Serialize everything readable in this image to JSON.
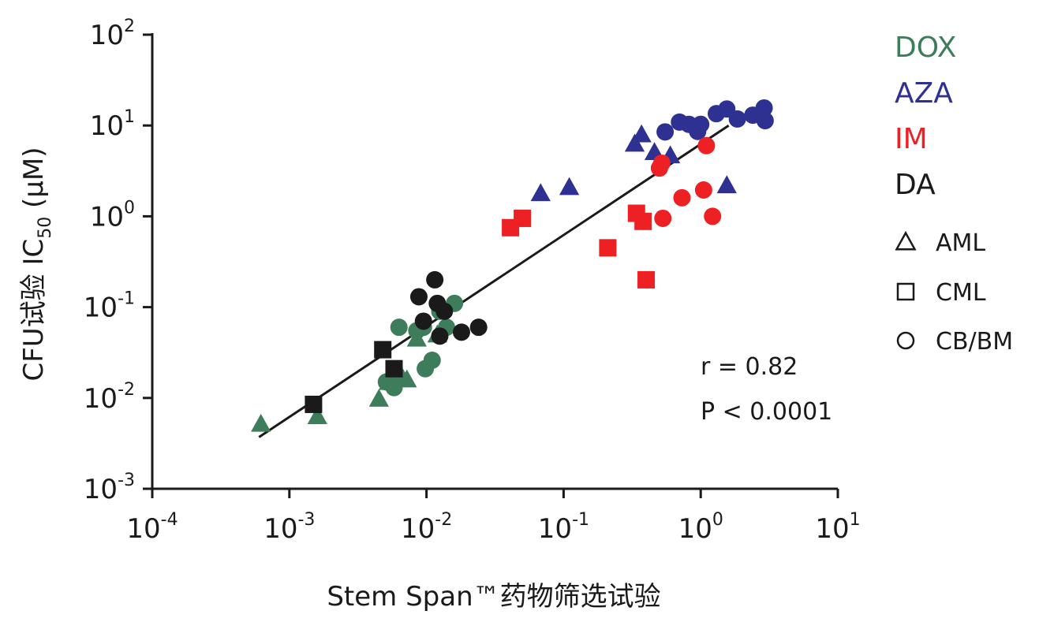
{
  "chart_data": {
    "type": "scatter",
    "xlabel": "Stem Span™药物筛选试验",
    "ylabel_parts": {
      "main": "CFU试验 IC",
      "sub": "50",
      "unit": " (μM)"
    },
    "x_scale": "log",
    "y_scale": "log",
    "xlim": [
      0.0001,
      10
    ],
    "ylim": [
      0.001,
      100
    ],
    "x_ticks": [
      {
        "base": "10",
        "exp": "-4"
      },
      {
        "base": "10",
        "exp": "-3"
      },
      {
        "base": "10",
        "exp": "-2"
      },
      {
        "base": "10",
        "exp": "-1"
      },
      {
        "base": "10",
        "exp": "0"
      },
      {
        "base": "10",
        "exp": "1"
      }
    ],
    "y_ticks": [
      {
        "base": "10",
        "exp": "-3"
      },
      {
        "base": "10",
        "exp": "-2"
      },
      {
        "base": "10",
        "exp": "-1"
      },
      {
        "base": "10",
        "exp": "0"
      },
      {
        "base": "10",
        "exp": "1"
      },
      {
        "base": "10",
        "exp": "2"
      }
    ],
    "legend_drugs": [
      {
        "label": "DOX",
        "color": "#3e7d5c"
      },
      {
        "label": "AZA",
        "color": "#2e3192"
      },
      {
        "label": "IM",
        "color": "#ed2024"
      },
      {
        "label": "DA",
        "color": "#1a1a1a"
      }
    ],
    "legend_types": [
      {
        "label": "AML",
        "shape": "triangle"
      },
      {
        "label": "CML",
        "shape": "square"
      },
      {
        "label": "CB/BM",
        "shape": "circle"
      }
    ],
    "stats": {
      "r": "r = 0.82",
      "p": "P < 0.0001"
    },
    "fit_line": {
      "x": [
        0.0006,
        1.6
      ],
      "y": [
        0.0037,
        10
      ]
    },
    "series": [
      {
        "drug": "DOX",
        "shape": "triangle",
        "points": [
          [
            0.00062,
            0.0052
          ],
          [
            0.0016,
            0.0063
          ],
          [
            0.0045,
            0.0098
          ],
          [
            0.0053,
            0.015
          ],
          [
            0.0065,
            0.018
          ],
          [
            0.0072,
            0.016
          ],
          [
            0.0085,
            0.045
          ],
          [
            0.012,
            0.05
          ]
        ]
      },
      {
        "drug": "DOX",
        "shape": "circle",
        "points": [
          [
            0.0051,
            0.015
          ],
          [
            0.0058,
            0.013
          ],
          [
            0.0063,
            0.06
          ],
          [
            0.0085,
            0.055
          ],
          [
            0.0098,
            0.021
          ],
          [
            0.011,
            0.026
          ],
          [
            0.0125,
            0.09
          ],
          [
            0.014,
            0.06
          ],
          [
            0.016,
            0.11
          ],
          [
            0.0095,
            0.06
          ]
        ]
      },
      {
        "drug": "AZA",
        "shape": "triangle",
        "points": [
          [
            0.068,
            1.8
          ],
          [
            0.11,
            2.1
          ],
          [
            0.33,
            6.3
          ],
          [
            0.37,
            8
          ],
          [
            0.46,
            5.1
          ],
          [
            0.6,
            4.7
          ],
          [
            1.55,
            2.2
          ]
        ]
      },
      {
        "drug": "AZA",
        "shape": "circle",
        "points": [
          [
            0.55,
            8.5
          ],
          [
            0.7,
            10.9
          ],
          [
            0.82,
            10.3
          ],
          [
            0.95,
            8.6
          ],
          [
            1.0,
            10.3
          ],
          [
            1.3,
            13.5
          ],
          [
            1.55,
            15.2
          ],
          [
            1.85,
            11.8
          ],
          [
            2.4,
            13
          ],
          [
            2.9,
            15.6
          ],
          [
            2.95,
            11.3
          ]
        ]
      },
      {
        "drug": "IM",
        "shape": "square",
        "points": [
          [
            0.041,
            0.75
          ],
          [
            0.05,
            0.95
          ],
          [
            0.21,
            0.45
          ],
          [
            0.34,
            1.08
          ],
          [
            0.38,
            0.88
          ],
          [
            0.4,
            0.2
          ]
        ]
      },
      {
        "drug": "IM",
        "shape": "circle",
        "points": [
          [
            0.5,
            3.4
          ],
          [
            0.52,
            3.85
          ],
          [
            0.53,
            0.95
          ],
          [
            0.73,
            1.6
          ],
          [
            1.05,
            1.95
          ],
          [
            1.1,
            6.0
          ],
          [
            1.22,
            1.0
          ]
        ]
      },
      {
        "drug": "DA",
        "shape": "square",
        "points": [
          [
            0.0015,
            0.0085
          ],
          [
            0.0048,
            0.034
          ],
          [
            0.0058,
            0.021
          ]
        ]
      },
      {
        "drug": "DA",
        "shape": "circle",
        "points": [
          [
            0.0088,
            0.13
          ],
          [
            0.0095,
            0.07
          ],
          [
            0.0115,
            0.2
          ],
          [
            0.012,
            0.11
          ],
          [
            0.0125,
            0.048
          ],
          [
            0.0135,
            0.09
          ],
          [
            0.018,
            0.053
          ],
          [
            0.024,
            0.06
          ]
        ]
      }
    ]
  }
}
